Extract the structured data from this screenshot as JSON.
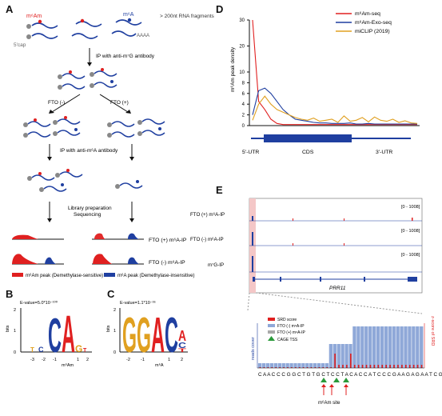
{
  "panels": {
    "a": "A",
    "b": "B",
    "c": "C",
    "d": "D",
    "e": "E"
  },
  "a": {
    "m6am": "m⁶Am",
    "m6a": "m⁶A",
    "cap": "5'cap",
    "polya": "AAAA",
    "fragments": "> 200nt RNA fragments",
    "ip1": "IP with anti-m⁷G antibody",
    "fto_minus": "FTO (-)",
    "fto_plus": "FTO (+)",
    "ip2": "IP with anti-m⁶A antibody",
    "lib1": "Library preparation",
    "lib2": "Sequencing",
    "track_plus": "FTO (+) m⁶A-IP",
    "track_minus": "FTO (-) m⁶A-IP",
    "leg_m6am": "m⁶Am peak (Demethylase-sensitive)",
    "leg_m6a": "m⁶A peak (Demethylase-insensitive)"
  },
  "b": {
    "evalue": "E-value=5.0*10⁻¹⁰⁰",
    "ylabel": "bits",
    "xlabel": "m⁶Am",
    "ticks_y": [
      "0",
      "1",
      "2"
    ],
    "ticks_x": [
      "-3",
      "-2",
      "-1",
      "1",
      "2"
    ]
  },
  "c": {
    "evalue": "E-value=1.1*10⁻³⁶",
    "ylabel": "bits",
    "xlabel": "m⁶A",
    "ticks_y": [
      "0",
      "1",
      "2"
    ],
    "ticks_x": [
      "-2",
      "-1",
      "1",
      "2"
    ]
  },
  "chart_data": {
    "type": "line",
    "ylabel": "m⁶Am peak density",
    "y_ticks": [
      "0",
      "2",
      "4",
      "6",
      "8",
      "10",
      "20",
      "30"
    ],
    "region_labels": [
      "5'-UTR",
      "CDS",
      "3'-UTR"
    ],
    "series": [
      {
        "name": "m⁶Am-seq",
        "color": "#e02020",
        "values": [
          30,
          4.5,
          3,
          1.2,
          0.4,
          0.2,
          0.2,
          0.2,
          0.2,
          0.2,
          0.2,
          0.2,
          0.2,
          0.2,
          0.2,
          0.2,
          0.2,
          0.2,
          0.2,
          0.2,
          0.2,
          0.2,
          0.2,
          0.2,
          0.2,
          0.2,
          0.2,
          0.2
        ]
      },
      {
        "name": "m⁶Am-Exo-seq",
        "color": "#1f3fa0",
        "values": [
          2,
          6.5,
          7,
          6,
          4.5,
          3,
          2,
          1.2,
          1,
          0.8,
          0.6,
          0.5,
          0.5,
          0.4,
          0.4,
          0.4,
          0.5,
          0.3,
          0.3,
          0.4,
          0.3,
          0.3,
          0.3,
          0.3,
          0.3,
          0.3,
          0.3,
          0.3
        ]
      },
      {
        "name": "miCLIP (2019)",
        "color": "#e0a020",
        "values": [
          1,
          4,
          5.5,
          4,
          3,
          2.5,
          2,
          1.5,
          1.2,
          1,
          1.4,
          0.8,
          1,
          1.2,
          0.6,
          1.8,
          0.8,
          1,
          1.5,
          0.7,
          1.6,
          1,
          0.8,
          1.2,
          0.6,
          0.9,
          0.5,
          0.4
        ]
      }
    ]
  },
  "e": {
    "tracks": [
      {
        "label": "FTO (+) m⁶A-IP",
        "range": "[0 - 1008]"
      },
      {
        "label": "FTO (-) m⁶A-IP",
        "range": "[0 - 1008]"
      },
      {
        "label": "m⁷G-IP",
        "range": "[0 - 1008]"
      }
    ],
    "gene": "PRR11",
    "legend": [
      "SRD score",
      "FTO (-) m⁶A-IP",
      "FTO (+) m⁶A-IP",
      "CAGE TSS"
    ],
    "ylabel_left": "reads cover",
    "ylabel_right": "z-score of SRD",
    "sequence": "CAACCCGGCTGTGCTCCTACACCATCCCGAAGAGAATCGTGC",
    "site_label": "m⁶Am site"
  },
  "colors": {
    "red": "#e02020",
    "blue": "#1f3fa0",
    "orange": "#e0a020",
    "pink": "#f4c7c7",
    "lightblue": "#8fa8d8"
  }
}
